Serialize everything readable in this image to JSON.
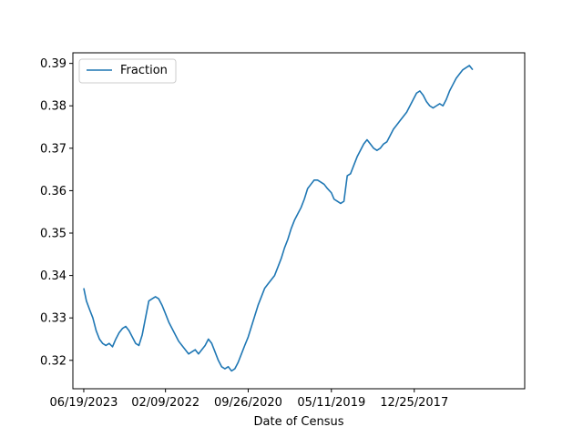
{
  "chart_data": {
    "type": "line",
    "title": "",
    "xlabel": "Date of Census",
    "ylabel": "",
    "x_reversed": true,
    "xlim": [
      "2023-08-24",
      "2016-02-25"
    ],
    "ylim": [
      0.3133,
      0.3925
    ],
    "x_ticks": [
      {
        "date": "2023-06-19",
        "label": "06/19/2023"
      },
      {
        "date": "2022-02-09",
        "label": "02/09/2022"
      },
      {
        "date": "2020-09-26",
        "label": "09/26/2020"
      },
      {
        "date": "2019-05-11",
        "label": "05/11/2019"
      },
      {
        "date": "2017-12-25",
        "label": "12/25/2017"
      }
    ],
    "y_ticks": [
      {
        "value": 0.32,
        "label": "0.32"
      },
      {
        "value": 0.33,
        "label": "0.33"
      },
      {
        "value": 0.34,
        "label": "0.34"
      },
      {
        "value": 0.35,
        "label": "0.35"
      },
      {
        "value": 0.36,
        "label": "0.36"
      },
      {
        "value": 0.37,
        "label": "0.37"
      },
      {
        "value": 0.38,
        "label": "0.38"
      },
      {
        "value": 0.39,
        "label": "0.39"
      }
    ],
    "legend": {
      "placement": "upper-left"
    },
    "series": [
      {
        "name": "Fraction",
        "color": "#1f77b4",
        "points": [
          [
            "2023-06-19",
            0.337
          ],
          [
            "2023-06-03",
            0.334
          ],
          [
            "2023-05-15",
            0.332
          ],
          [
            "2023-04-25",
            0.33
          ],
          [
            "2023-04-05",
            0.327
          ],
          [
            "2023-03-16",
            0.325
          ],
          [
            "2023-02-25",
            0.324
          ],
          [
            "2023-02-05",
            0.3235
          ],
          [
            "2023-01-16",
            0.324
          ],
          [
            "2022-12-27",
            0.3232
          ],
          [
            "2022-12-07",
            0.325
          ],
          [
            "2022-11-17",
            0.3265
          ],
          [
            "2022-10-28",
            0.3275
          ],
          [
            "2022-10-08",
            0.328
          ],
          [
            "2022-09-18",
            0.327
          ],
          [
            "2022-08-29",
            0.3255
          ],
          [
            "2022-08-09",
            0.324
          ],
          [
            "2022-07-20",
            0.3235
          ],
          [
            "2022-06-30",
            0.326
          ],
          [
            "2022-06-10",
            0.33
          ],
          [
            "2022-05-21",
            0.334
          ],
          [
            "2022-05-01",
            0.3345
          ],
          [
            "2022-04-11",
            0.335
          ],
          [
            "2022-03-22",
            0.3345
          ],
          [
            "2022-03-02",
            0.333
          ],
          [
            "2022-02-09",
            0.331
          ],
          [
            "2022-01-20",
            0.329
          ],
          [
            "2021-12-31",
            0.3275
          ],
          [
            "2021-12-11",
            0.326
          ],
          [
            "2021-11-21",
            0.3245
          ],
          [
            "2021-11-01",
            0.3235
          ],
          [
            "2021-10-12",
            0.3225
          ],
          [
            "2021-09-22",
            0.3215
          ],
          [
            "2021-09-02",
            0.322
          ],
          [
            "2021-08-13",
            0.3225
          ],
          [
            "2021-07-24",
            0.3215
          ],
          [
            "2021-07-04",
            0.3225
          ],
          [
            "2021-06-14",
            0.3235
          ],
          [
            "2021-05-25",
            0.325
          ],
          [
            "2021-05-05",
            0.324
          ],
          [
            "2021-04-15",
            0.322
          ],
          [
            "2021-03-26",
            0.32
          ],
          [
            "2021-03-06",
            0.3185
          ],
          [
            "2021-02-14",
            0.318
          ],
          [
            "2021-01-25",
            0.3185
          ],
          [
            "2021-01-05",
            0.3175
          ],
          [
            "2020-12-16",
            0.318
          ],
          [
            "2020-11-26",
            0.3195
          ],
          [
            "2020-11-06",
            0.3215
          ],
          [
            "2020-10-17",
            0.3235
          ],
          [
            "2020-09-26",
            0.3255
          ],
          [
            "2020-09-06",
            0.328
          ],
          [
            "2020-08-17",
            0.3305
          ],
          [
            "2020-07-28",
            0.333
          ],
          [
            "2020-07-08",
            0.335
          ],
          [
            "2020-06-18",
            0.337
          ],
          [
            "2020-05-29",
            0.338
          ],
          [
            "2020-05-09",
            0.339
          ],
          [
            "2020-04-19",
            0.34
          ],
          [
            "2020-03-30",
            0.342
          ],
          [
            "2020-03-10",
            0.344
          ],
          [
            "2020-02-19",
            0.3465
          ],
          [
            "2020-01-30",
            0.3485
          ],
          [
            "2020-01-10",
            0.351
          ],
          [
            "2019-12-21",
            0.353
          ],
          [
            "2019-12-01",
            0.3545
          ],
          [
            "2019-11-11",
            0.356
          ],
          [
            "2019-10-22",
            0.358
          ],
          [
            "2019-10-02",
            0.3605
          ],
          [
            "2019-09-12",
            0.3615
          ],
          [
            "2019-08-23",
            0.3625
          ],
          [
            "2019-08-03",
            0.3625
          ],
          [
            "2019-07-14",
            0.362
          ],
          [
            "2019-06-24",
            0.3615
          ],
          [
            "2019-06-04",
            0.3605
          ],
          [
            "2019-05-11",
            0.3595
          ],
          [
            "2019-04-25",
            0.358
          ],
          [
            "2019-04-05",
            0.3575
          ],
          [
            "2019-03-16",
            0.357
          ],
          [
            "2019-02-24",
            0.3575
          ],
          [
            "2019-02-04",
            0.3635
          ],
          [
            "2019-01-15",
            0.364
          ],
          [
            "2018-12-26",
            0.366
          ],
          [
            "2018-12-06",
            0.368
          ],
          [
            "2018-11-16",
            0.3695
          ],
          [
            "2018-10-27",
            0.371
          ],
          [
            "2018-10-07",
            0.372
          ],
          [
            "2018-09-17",
            0.371
          ],
          [
            "2018-08-28",
            0.37
          ],
          [
            "2018-08-08",
            0.3695
          ],
          [
            "2018-07-19",
            0.37
          ],
          [
            "2018-06-29",
            0.371
          ],
          [
            "2018-06-09",
            0.3715
          ],
          [
            "2018-05-20",
            0.373
          ],
          [
            "2018-04-30",
            0.3745
          ],
          [
            "2018-04-10",
            0.3755
          ],
          [
            "2018-03-21",
            0.3765
          ],
          [
            "2018-03-01",
            0.3775
          ],
          [
            "2018-02-09",
            0.3785
          ],
          [
            "2018-01-20",
            0.38
          ],
          [
            "2017-12-31",
            0.3815
          ],
          [
            "2017-12-11",
            0.383
          ],
          [
            "2017-11-21",
            0.3835
          ],
          [
            "2017-11-01",
            0.3825
          ],
          [
            "2017-10-12",
            0.381
          ],
          [
            "2017-09-22",
            0.38
          ],
          [
            "2017-09-02",
            0.3795
          ],
          [
            "2017-08-13",
            0.38
          ],
          [
            "2017-07-24",
            0.3805
          ],
          [
            "2017-07-04",
            0.38
          ],
          [
            "2017-06-14",
            0.3815
          ],
          [
            "2017-05-25",
            0.3835
          ],
          [
            "2017-05-05",
            0.385
          ],
          [
            "2017-04-15",
            0.3865
          ],
          [
            "2017-03-26",
            0.3875
          ],
          [
            "2017-03-06",
            0.3885
          ],
          [
            "2017-02-14",
            0.389
          ],
          [
            "2017-01-25",
            0.3895
          ],
          [
            "2017-01-05",
            0.3885
          ]
        ]
      }
    ]
  }
}
